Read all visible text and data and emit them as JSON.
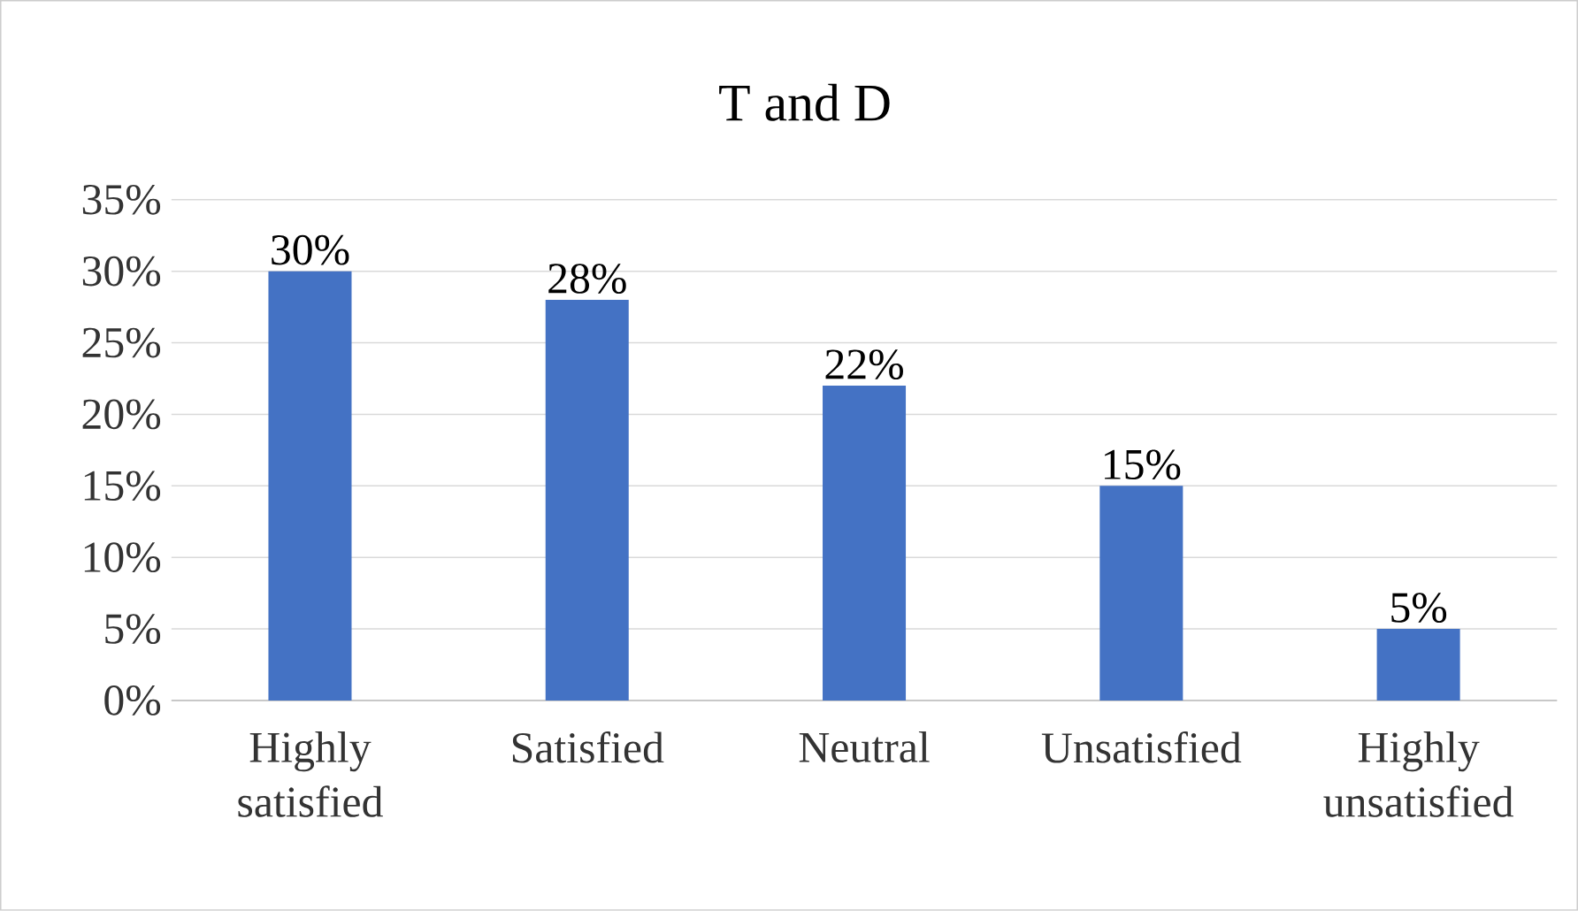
{
  "chart_data": {
    "type": "bar",
    "title": "T and D",
    "categories": [
      "Highly satisfied",
      "Satisfied",
      "Neutral",
      "Unsatisfied",
      "Highly unsatisfied"
    ],
    "values": [
      30,
      28,
      22,
      15,
      5
    ],
    "value_labels": [
      "30%",
      "28%",
      "22%",
      "15%",
      "5%"
    ],
    "color": "#4472c4",
    "ylim": [
      0,
      35
    ],
    "yticks": [
      {
        "value": 0,
        "label": "0%"
      },
      {
        "value": 5,
        "label": "5%"
      },
      {
        "value": 10,
        "label": "10%"
      },
      {
        "value": 15,
        "label": "15%"
      },
      {
        "value": 20,
        "label": "20%"
      },
      {
        "value": 25,
        "label": "25%"
      },
      {
        "value": 30,
        "label": "30%"
      },
      {
        "value": 35,
        "label": "35%"
      }
    ],
    "grid": "y"
  }
}
